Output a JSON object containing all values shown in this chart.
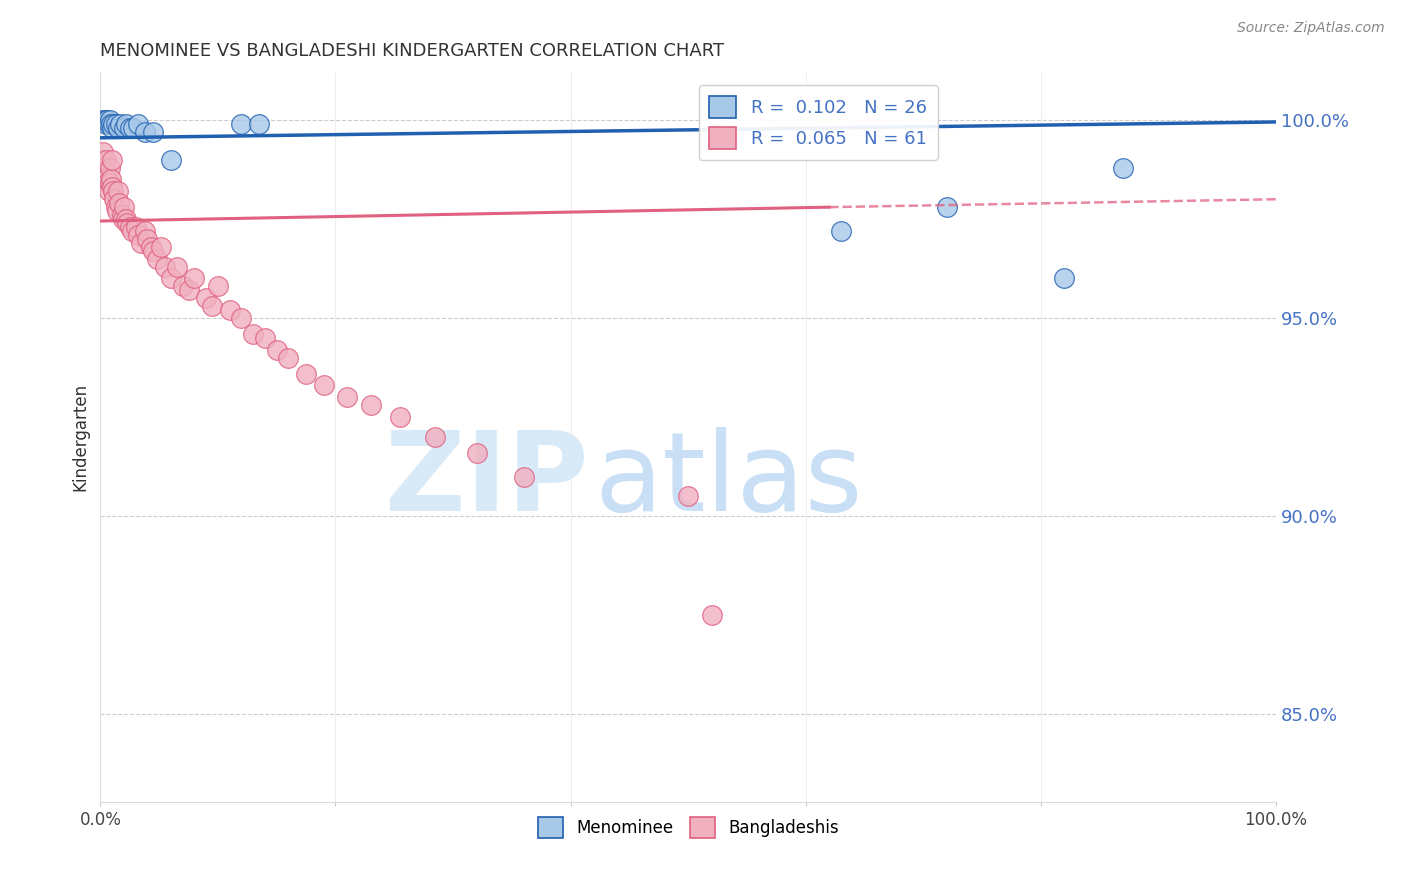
{
  "title": "MENOMINEE VS BANGLADESHI KINDERGARTEN CORRELATION CHART",
  "source": "Source: ZipAtlas.com",
  "ylabel": "Kindergarten",
  "ytick_labels": [
    "85.0%",
    "90.0%",
    "95.0%",
    "100.0%"
  ],
  "ytick_values": [
    0.85,
    0.9,
    0.95,
    1.0
  ],
  "xlim": [
    0.0,
    1.0
  ],
  "ylim": [
    0.828,
    1.012
  ],
  "legend_labels": [
    "Menominee",
    "Bangladeshis"
  ],
  "legend_R": [
    0.102,
    0.065
  ],
  "legend_N": [
    26,
    61
  ],
  "menominee_color": "#a8c8e8",
  "bangladeshi_color": "#f0b0c0",
  "trend_menominee_color": "#2060b0",
  "trend_bangladeshi_color": "#e06080",
  "watermark_zip_color": "#d8eaf8",
  "watermark_atlas_color": "#c8dff5",
  "menominee_x": [
    0.002,
    0.004,
    0.005,
    0.006,
    0.007,
    0.008,
    0.009,
    0.01,
    0.011,
    0.013,
    0.015,
    0.017,
    0.02,
    0.022,
    0.025,
    0.028,
    0.032,
    0.038,
    0.045,
    0.06,
    0.12,
    0.135,
    0.63,
    0.72,
    0.82,
    0.87
  ],
  "menominee_y": [
    1.0,
    1.0,
    0.999,
    1.0,
    0.999,
    1.0,
    0.999,
    0.998,
    0.999,
    0.999,
    0.998,
    0.999,
    0.998,
    0.999,
    0.998,
    0.998,
    0.999,
    0.997,
    0.997,
    0.99,
    0.999,
    0.999,
    0.972,
    0.978,
    0.96,
    0.988
  ],
  "bangladeshi_x": [
    0.001,
    0.002,
    0.003,
    0.003,
    0.004,
    0.005,
    0.005,
    0.006,
    0.007,
    0.008,
    0.008,
    0.009,
    0.01,
    0.01,
    0.011,
    0.012,
    0.013,
    0.014,
    0.015,
    0.016,
    0.018,
    0.019,
    0.02,
    0.022,
    0.023,
    0.025,
    0.027,
    0.03,
    0.032,
    0.035,
    0.038,
    0.04,
    0.043,
    0.045,
    0.048,
    0.052,
    0.055,
    0.06,
    0.065,
    0.07,
    0.075,
    0.08,
    0.09,
    0.095,
    0.1,
    0.11,
    0.12,
    0.13,
    0.14,
    0.15,
    0.16,
    0.175,
    0.19,
    0.21,
    0.23,
    0.255,
    0.285,
    0.32,
    0.36,
    0.5,
    0.52
  ],
  "bangladeshi_y": [
    0.99,
    0.992,
    0.988,
    0.985,
    0.987,
    0.99,
    0.985,
    0.984,
    0.982,
    0.988,
    0.984,
    0.985,
    0.983,
    0.99,
    0.982,
    0.98,
    0.978,
    0.977,
    0.982,
    0.979,
    0.976,
    0.975,
    0.978,
    0.975,
    0.974,
    0.973,
    0.972,
    0.973,
    0.971,
    0.969,
    0.972,
    0.97,
    0.968,
    0.967,
    0.965,
    0.968,
    0.963,
    0.96,
    0.963,
    0.958,
    0.957,
    0.96,
    0.955,
    0.953,
    0.958,
    0.952,
    0.95,
    0.946,
    0.945,
    0.942,
    0.94,
    0.936,
    0.933,
    0.93,
    0.928,
    0.925,
    0.92,
    0.916,
    0.91,
    0.905,
    0.875
  ],
  "trend_men_x0": 0.0,
  "trend_men_y0": 0.9955,
  "trend_men_x1": 1.0,
  "trend_men_y1": 0.9995,
  "trend_ban_x0": 0.0,
  "trend_ban_y0": 0.9745,
  "trend_ban_x1": 0.62,
  "trend_ban_y1": 0.978,
  "trend_ban_dash_x0": 0.62,
  "trend_ban_dash_y0": 0.978,
  "trend_ban_dash_x1": 1.0,
  "trend_ban_dash_y1": 0.98
}
